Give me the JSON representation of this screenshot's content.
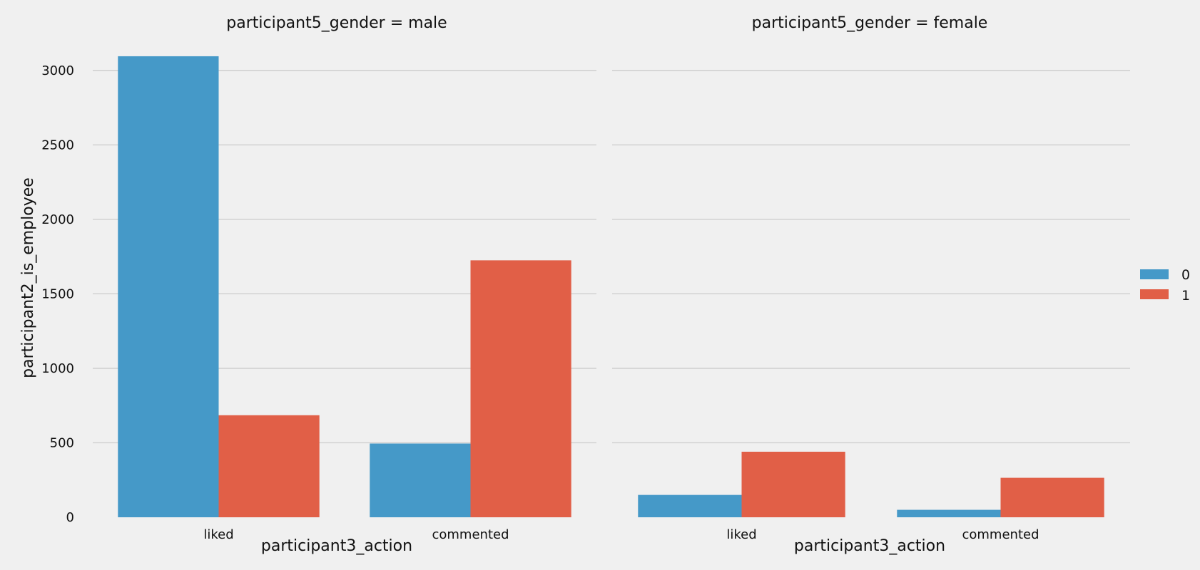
{
  "chart_data": {
    "type": "bar",
    "categories": [
      "liked",
      "commented"
    ],
    "ylabel": "participant2_is_employee",
    "yticks": [
      0,
      500,
      1000,
      1500,
      2000,
      2500,
      3000
    ],
    "ylim": [
      0,
      3200
    ],
    "grid": true,
    "legend": {
      "placement": "right",
      "entries": [
        {
          "label": "0",
          "color": "#4599c8"
        },
        {
          "label": "1",
          "color": "#e15f47"
        }
      ]
    },
    "panels": [
      {
        "title": "participant5_gender = male",
        "xlabel": "participant3_action",
        "series": [
          {
            "name": "0",
            "values": [
              3095,
              495
            ]
          },
          {
            "name": "1",
            "values": [
              685,
              1725
            ]
          }
        ]
      },
      {
        "title": "participant5_gender = female",
        "xlabel": "participant3_action",
        "series": [
          {
            "name": "0",
            "values": [
              150,
              50
            ]
          },
          {
            "name": "1",
            "values": [
              440,
              265
            ]
          }
        ]
      }
    ]
  }
}
